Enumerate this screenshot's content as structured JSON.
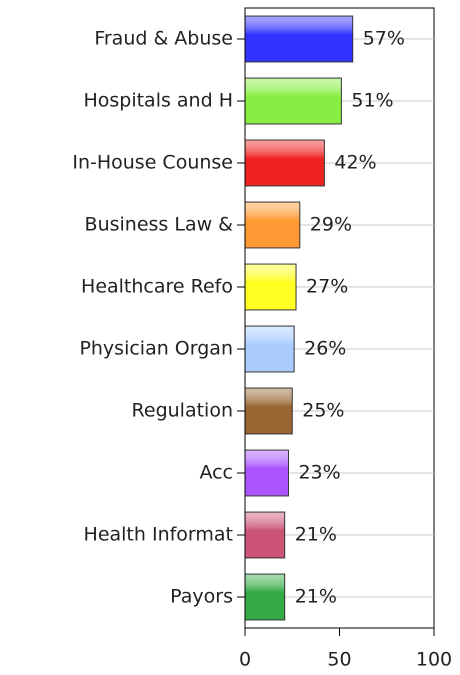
{
  "chart_data": {
    "type": "bar",
    "orientation": "horizontal",
    "categories": [
      "Fraud & Abuse",
      "Hospitals and H",
      "In-House Counse",
      "Business Law &",
      "Healthcare Refo",
      "Physician Organ",
      "Regulation",
      "Acc",
      "Health Informat",
      "Payors"
    ],
    "values": [
      57,
      51,
      42,
      29,
      27,
      26,
      25,
      23,
      21,
      21
    ],
    "value_labels": [
      "57%",
      "51%",
      "42%",
      "29%",
      "27%",
      "26%",
      "25%",
      "23%",
      "21%",
      "21%"
    ],
    "colors": [
      "#3333ff",
      "#88ee44",
      "#ee2222",
      "#ff9933",
      "#ffff22",
      "#aaccff",
      "#996633",
      "#aa55ff",
      "#cc5577",
      "#33aa44"
    ],
    "xlim": [
      0,
      100
    ],
    "xticks": [
      0,
      50,
      100
    ]
  }
}
